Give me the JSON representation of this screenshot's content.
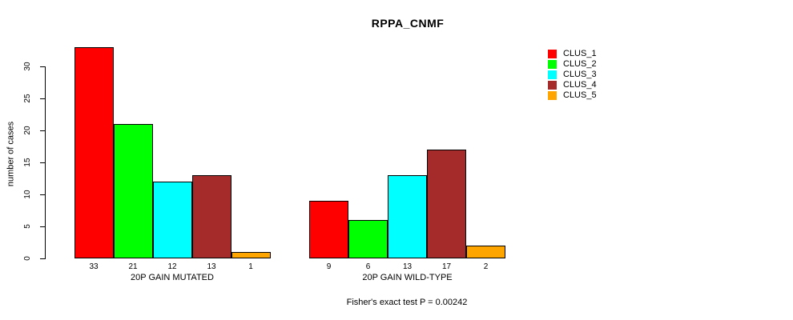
{
  "title": "RPPA_CNMF",
  "footer": "Fisher's exact test P = 0.00242",
  "y_axis": {
    "label": "number of cases",
    "ticks": [
      0,
      5,
      10,
      15,
      20,
      25,
      30
    ]
  },
  "chart_data": {
    "type": "bar",
    "title": "RPPA_CNMF",
    "xlabel": "",
    "ylabel": "number of cases",
    "ylim": [
      0,
      33
    ],
    "yticks": [
      0,
      5,
      10,
      15,
      20,
      25,
      30
    ],
    "grid": false,
    "legend_position": "top-right",
    "categories": [
      "20P GAIN MUTATED",
      "20P GAIN WILD-TYPE"
    ],
    "series": [
      {
        "name": "CLUS_1",
        "color": "#FF0000",
        "values": [
          33,
          9
        ]
      },
      {
        "name": "CLUS_2",
        "color": "#00FF00",
        "values": [
          21,
          6
        ]
      },
      {
        "name": "CLUS_3",
        "color": "#00FFFF",
        "values": [
          12,
          13
        ]
      },
      {
        "name": "CLUS_4",
        "color": "#A52A2A",
        "values": [
          13,
          17
        ]
      },
      {
        "name": "CLUS_5",
        "color": "#FFA500",
        "values": [
          1,
          2
        ]
      }
    ],
    "bar_value_labels": {
      "20P GAIN MUTATED": [
        33,
        21,
        12,
        13,
        1
      ],
      "20P GAIN WILD-TYPE": [
        9,
        6,
        13,
        17,
        2
      ]
    },
    "annotation": "Fisher's exact test P = 0.00242"
  }
}
